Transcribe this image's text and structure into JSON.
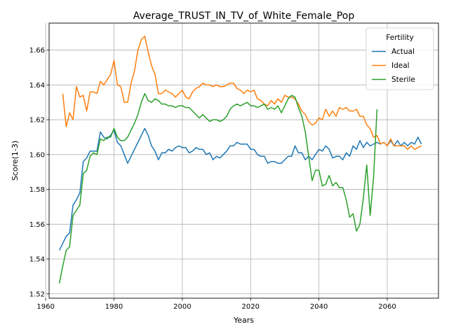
{
  "chart_data": {
    "type": "line",
    "title": "Average_TRUST_IN_TV_of_White_Female_Pop",
    "xlabel": "Years",
    "ylabel": "Score(1-3)",
    "xlim": [
      1961,
      2075
    ],
    "ylim": [
      1.5175,
      1.6755
    ],
    "xticks": [
      1960,
      1980,
      2000,
      2020,
      2040,
      2060
    ],
    "yticks": [
      1.52,
      1.54,
      1.56,
      1.58,
      1.6,
      1.62,
      1.64,
      1.66
    ],
    "grid": true,
    "legend": {
      "title": "Fertility",
      "position": "top-right"
    },
    "series": [
      {
        "name": "Actual",
        "color": "#1f77b4",
        "x": [
          1964,
          1965,
          1966,
          1967,
          1968,
          1969,
          1970,
          1971,
          1972,
          1973,
          1974,
          1975,
          1976,
          1977,
          1978,
          1979,
          1980,
          1981,
          1982,
          1983,
          1984,
          1985,
          1986,
          1987,
          1988,
          1989,
          1990,
          1991,
          1992,
          1993,
          1994,
          1995,
          1996,
          1997,
          1998,
          1999,
          2000,
          2001,
          2002,
          2003,
          2004,
          2005,
          2006,
          2007,
          2008,
          2009,
          2010,
          2011,
          2012,
          2013,
          2014,
          2015,
          2016,
          2017,
          2018,
          2019,
          2020,
          2021,
          2022,
          2023,
          2024,
          2025,
          2026,
          2027,
          2028,
          2029,
          2030,
          2031,
          2032,
          2033,
          2034,
          2035,
          2036,
          2037,
          2038,
          2039,
          2040,
          2041,
          2042,
          2043,
          2044,
          2045,
          2046,
          2047,
          2048,
          2049,
          2050,
          2051,
          2052,
          2053,
          2054,
          2055,
          2056,
          2057,
          2058,
          2059,
          2060,
          2061,
          2062,
          2063,
          2064,
          2065,
          2066,
          2067,
          2068,
          2069,
          2070
        ],
        "values": [
          1.545,
          1.549,
          1.553,
          1.555,
          1.571,
          1.574,
          1.578,
          1.596,
          1.598,
          1.602,
          1.602,
          1.602,
          1.613,
          1.61,
          1.609,
          1.611,
          1.614,
          1.607,
          1.605,
          1.6,
          1.595,
          1.599,
          1.603,
          1.607,
          1.611,
          1.615,
          1.611,
          1.605,
          1.602,
          1.597,
          1.601,
          1.601,
          1.603,
          1.602,
          1.604,
          1.605,
          1.604,
          1.604,
          1.601,
          1.602,
          1.604,
          1.603,
          1.603,
          1.6,
          1.601,
          1.597,
          1.599,
          1.598,
          1.6,
          1.602,
          1.605,
          1.605,
          1.607,
          1.606,
          1.606,
          1.606,
          1.603,
          1.603,
          1.6,
          1.599,
          1.599,
          1.595,
          1.596,
          1.596,
          1.595,
          1.595,
          1.597,
          1.599,
          1.599,
          1.605,
          1.601,
          1.601,
          1.597,
          1.599,
          1.597,
          1.6,
          1.603,
          1.602,
          1.605,
          1.603,
          1.598,
          1.599,
          1.599,
          1.597,
          1.601,
          1.599,
          1.605,
          1.603,
          1.608,
          1.604,
          1.607,
          1.605,
          1.606,
          1.607,
          1.606,
          1.607,
          1.605,
          1.608,
          1.605,
          1.608,
          1.605,
          1.607,
          1.605,
          1.607,
          1.606,
          1.61,
          1.606
        ]
      },
      {
        "name": "Ideal",
        "color": "#ff7f0e",
        "x": [
          1965,
          1966,
          1967,
          1968,
          1969,
          1970,
          1971,
          1972,
          1973,
          1974,
          1975,
          1976,
          1977,
          1978,
          1979,
          1980,
          1981,
          1982,
          1983,
          1984,
          1985,
          1986,
          1987,
          1988,
          1989,
          1990,
          1991,
          1992,
          1993,
          1994,
          1995,
          1996,
          1997,
          1998,
          1999,
          2000,
          2001,
          2002,
          2003,
          2004,
          2005,
          2006,
          2007,
          2008,
          2009,
          2010,
          2011,
          2012,
          2013,
          2014,
          2015,
          2016,
          2017,
          2018,
          2019,
          2020,
          2021,
          2022,
          2023,
          2024,
          2025,
          2026,
          2027,
          2028,
          2029,
          2030,
          2031,
          2032,
          2033,
          2034,
          2035,
          2036,
          2037,
          2038,
          2039,
          2040,
          2041,
          2042,
          2043,
          2044,
          2045,
          2046,
          2047,
          2048,
          2049,
          2050,
          2051,
          2052,
          2053,
          2054,
          2055,
          2056,
          2057,
          2058,
          2059,
          2060,
          2061,
          2062,
          2063,
          2064,
          2065,
          2066,
          2067,
          2068,
          2069,
          2070
        ],
        "values": [
          1.635,
          1.616,
          1.624,
          1.62,
          1.639,
          1.633,
          1.634,
          1.625,
          1.636,
          1.636,
          1.635,
          1.642,
          1.64,
          1.643,
          1.646,
          1.654,
          1.64,
          1.639,
          1.63,
          1.63,
          1.641,
          1.648,
          1.66,
          1.666,
          1.668,
          1.659,
          1.651,
          1.646,
          1.635,
          1.635,
          1.637,
          1.636,
          1.635,
          1.633,
          1.635,
          1.637,
          1.633,
          1.632,
          1.636,
          1.638,
          1.639,
          1.641,
          1.64,
          1.64,
          1.639,
          1.64,
          1.639,
          1.639,
          1.64,
          1.641,
          1.641,
          1.638,
          1.637,
          1.635,
          1.637,
          1.636,
          1.637,
          1.632,
          1.631,
          1.629,
          1.628,
          1.631,
          1.629,
          1.632,
          1.63,
          1.634,
          1.633,
          1.633,
          1.632,
          1.629,
          1.625,
          1.623,
          1.619,
          1.617,
          1.618,
          1.621,
          1.62,
          1.626,
          1.622,
          1.625,
          1.622,
          1.627,
          1.626,
          1.627,
          1.625,
          1.625,
          1.626,
          1.622,
          1.622,
          1.617,
          1.615,
          1.61,
          1.611,
          1.606,
          1.607,
          1.605,
          1.609,
          1.605,
          1.605,
          1.605,
          1.605,
          1.603,
          1.605,
          1.603,
          1.604,
          1.605
        ]
      },
      {
        "name": "Sterile",
        "color": "#2ca02c",
        "x": [
          1964,
          1965,
          1966,
          1967,
          1968,
          1969,
          1970,
          1971,
          1972,
          1973,
          1974,
          1975,
          1976,
          1977,
          1978,
          1979,
          1980,
          1981,
          1982,
          1983,
          1984,
          1985,
          1986,
          1987,
          1988,
          1989,
          1990,
          1991,
          1992,
          1993,
          1994,
          1995,
          1996,
          1997,
          1998,
          1999,
          2000,
          2001,
          2002,
          2003,
          2004,
          2005,
          2006,
          2007,
          2008,
          2009,
          2010,
          2011,
          2012,
          2013,
          2014,
          2015,
          2016,
          2017,
          2018,
          2019,
          2020,
          2021,
          2022,
          2023,
          2024,
          2025,
          2026,
          2027,
          2028,
          2029,
          2030,
          2031,
          2032,
          2033,
          2034,
          2035,
          2036,
          2037,
          2038,
          2039,
          2040,
          2041,
          2042,
          2043,
          2044,
          2045,
          2046,
          2047,
          2048,
          2049,
          2050,
          2051,
          2052,
          2053,
          2054,
          2055,
          2056,
          2057
        ],
        "values": [
          1.526,
          1.536,
          1.545,
          1.547,
          1.565,
          1.568,
          1.571,
          1.589,
          1.591,
          1.599,
          1.601,
          1.6,
          1.609,
          1.608,
          1.61,
          1.61,
          1.615,
          1.61,
          1.608,
          1.608,
          1.61,
          1.614,
          1.618,
          1.623,
          1.63,
          1.635,
          1.631,
          1.63,
          1.632,
          1.631,
          1.629,
          1.629,
          1.628,
          1.628,
          1.627,
          1.628,
          1.628,
          1.627,
          1.627,
          1.625,
          1.623,
          1.621,
          1.623,
          1.621,
          1.619,
          1.62,
          1.62,
          1.619,
          1.62,
          1.622,
          1.626,
          1.628,
          1.629,
          1.628,
          1.629,
          1.63,
          1.628,
          1.628,
          1.627,
          1.628,
          1.629,
          1.626,
          1.627,
          1.626,
          1.628,
          1.624,
          1.628,
          1.632,
          1.634,
          1.633,
          1.627,
          1.622,
          1.613,
          1.599,
          1.585,
          1.591,
          1.591,
          1.582,
          1.583,
          1.588,
          1.582,
          1.584,
          1.581,
          1.581,
          1.574,
          1.564,
          1.566,
          1.556,
          1.56,
          1.575,
          1.594,
          1.565,
          1.587,
          1.626
        ]
      }
    ]
  }
}
